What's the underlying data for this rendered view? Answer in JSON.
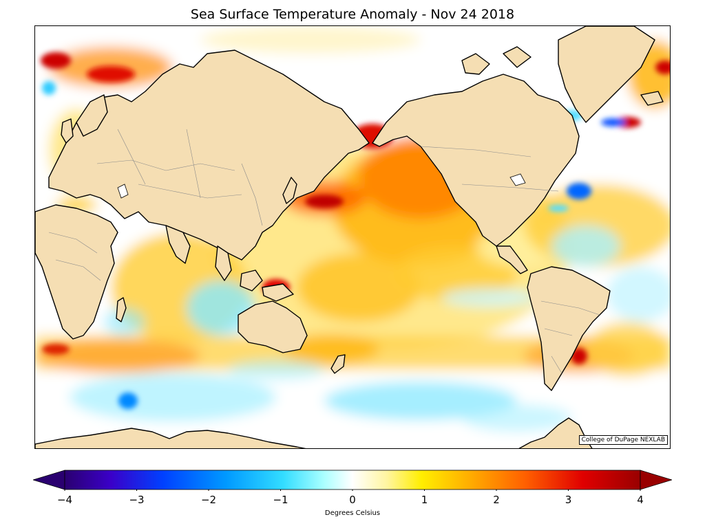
{
  "title": "Sea Surface Temperature Anomaly - Nov 24 2018",
  "credit": "College of DuPage NEXLAB",
  "colorbar": {
    "label": "Degrees Celsius",
    "ticks": [
      "−4",
      "−3",
      "−2",
      "−1",
      "0",
      "1",
      "2",
      "3",
      "4"
    ],
    "range": [
      -4,
      4
    ],
    "extend": "both",
    "stops": [
      "#2a0070",
      "#3a00c8",
      "#0040ff",
      "#0099ff",
      "#33ddff",
      "#aaffff",
      "#ffffff",
      "#fff5a0",
      "#ffee00",
      "#ffb000",
      "#ff6000",
      "#e00000",
      "#990000"
    ]
  },
  "map": {
    "land_color": "#f5deb3",
    "coast_color": "#000000",
    "border_color": "#8a8a8a"
  }
}
